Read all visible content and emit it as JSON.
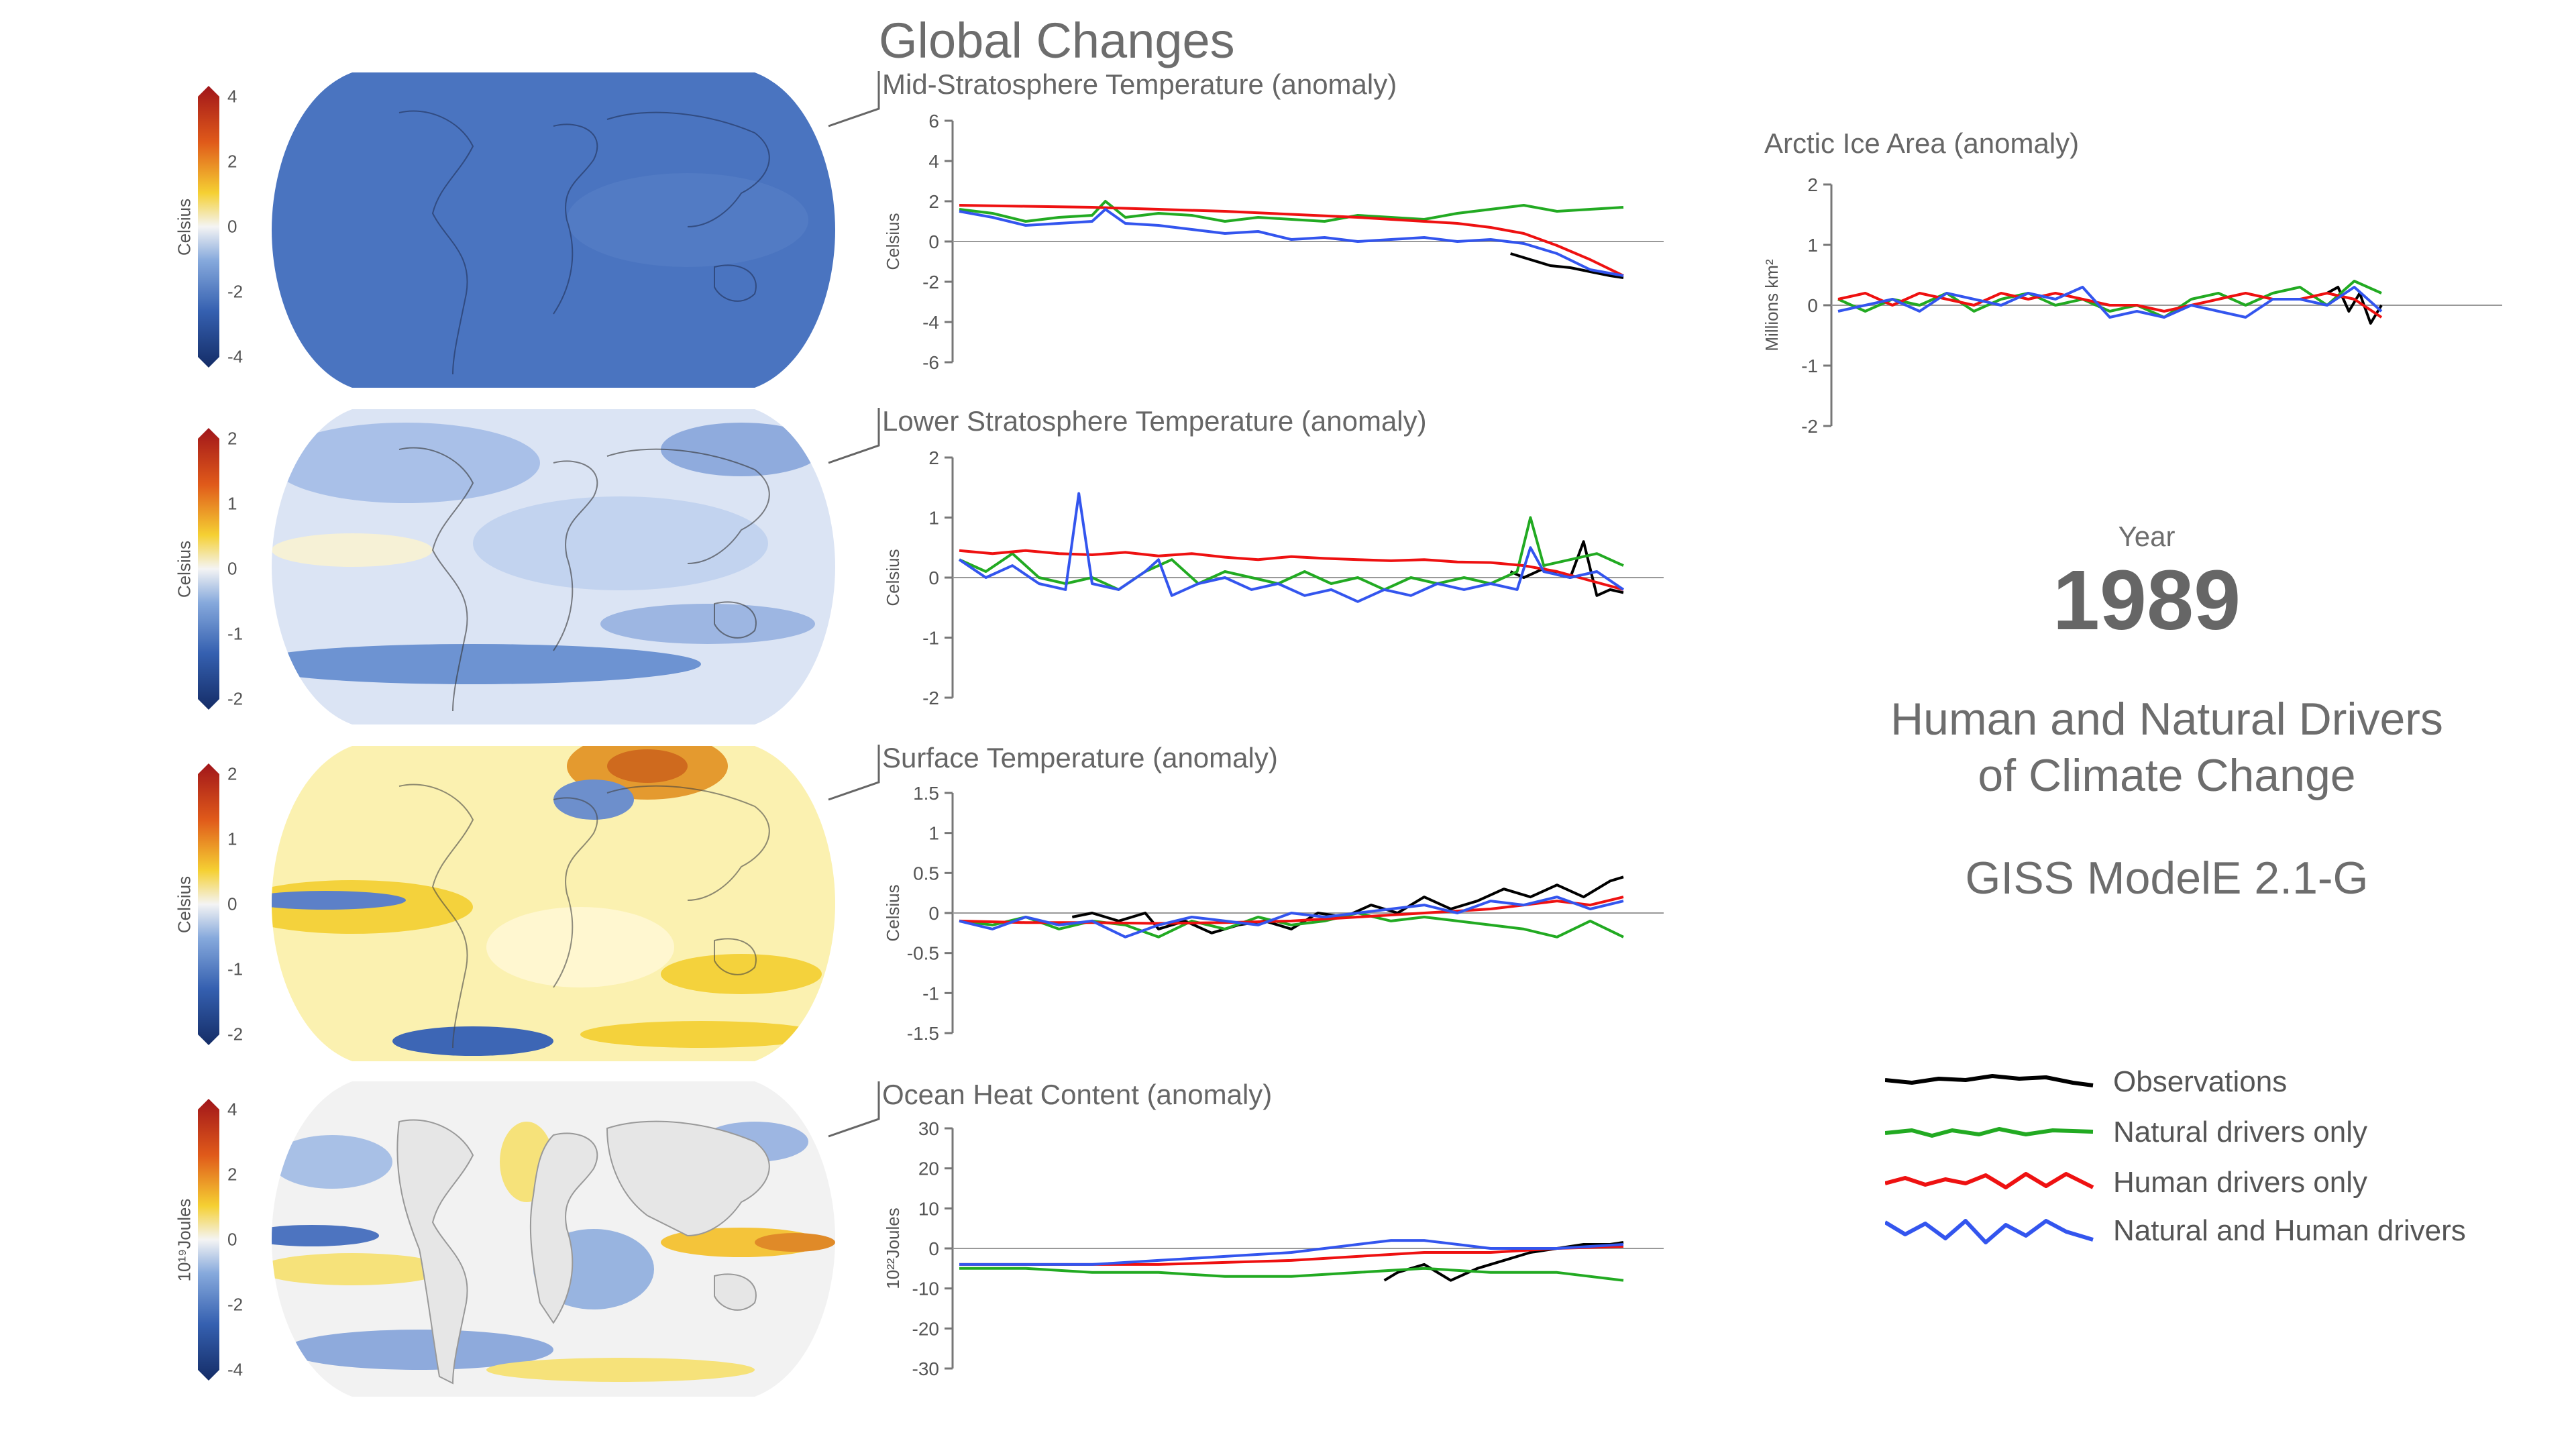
{
  "title": "Global Changes",
  "year_label": "Year",
  "year": "1989",
  "subtitle_line1": "Human and Natural Drivers",
  "subtitle_line2": "of Climate Change",
  "model": "GISS ModelE 2.1-G",
  "colors": {
    "observations": "#000000",
    "natural": "#22aa22",
    "human": "#ee1111",
    "both": "#3355ee",
    "axis": "#888888",
    "zero_line": "#999999"
  },
  "legend": [
    {
      "label": "Observations",
      "color": "#000000"
    },
    {
      "label": "Natural drivers only",
      "color": "#22aa22"
    },
    {
      "label": "Human drivers only",
      "color": "#ee1111"
    },
    {
      "label": "Natural and Human drivers",
      "color": "#3355ee"
    }
  ],
  "colorbars": [
    {
      "unit": "Celsius",
      "ticks": [
        "4",
        "2",
        "0",
        "-2",
        "-4"
      ]
    },
    {
      "unit": "Celsius",
      "ticks": [
        "2",
        "1",
        "0",
        "-1",
        "-2"
      ]
    },
    {
      "unit": "Celsius",
      "ticks": [
        "2",
        "1",
        "0",
        "-1",
        "-2"
      ]
    },
    {
      "unit": "10¹⁹Joules",
      "ticks": [
        "4",
        "2",
        "0",
        "-2",
        "-4"
      ]
    }
  ],
  "chart_data": [
    {
      "type": "line",
      "title": "Mid-Stratosphere Temperature (anomaly)",
      "ylabel": "Celsius",
      "ylim": [
        -6,
        6
      ],
      "yticks": [
        6,
        4,
        2,
        0,
        -2,
        -4,
        -6
      ],
      "series": [
        {
          "name": "Observations",
          "color": "#000000",
          "x": [
            0.83,
            0.86,
            0.89,
            0.92,
            0.95,
            0.98,
            1.0
          ],
          "y": [
            -0.6,
            -0.9,
            -1.2,
            -1.3,
            -1.5,
            -1.7,
            -1.8
          ]
        },
        {
          "name": "Natural drivers only",
          "color": "#22aa22",
          "x": [
            0.0,
            0.05,
            0.1,
            0.15,
            0.2,
            0.22,
            0.25,
            0.3,
            0.35,
            0.4,
            0.45,
            0.5,
            0.55,
            0.6,
            0.65,
            0.7,
            0.75,
            0.8,
            0.85,
            0.9,
            0.95,
            1.0
          ],
          "y": [
            1.6,
            1.4,
            1.0,
            1.2,
            1.3,
            2.0,
            1.2,
            1.4,
            1.3,
            1.0,
            1.2,
            1.1,
            1.0,
            1.3,
            1.2,
            1.1,
            1.4,
            1.6,
            1.8,
            1.5,
            1.6,
            1.7
          ]
        },
        {
          "name": "Human drivers only",
          "color": "#ee1111",
          "x": [
            0.0,
            0.1,
            0.2,
            0.3,
            0.4,
            0.5,
            0.6,
            0.65,
            0.7,
            0.75,
            0.8,
            0.85,
            0.9,
            0.95,
            1.0
          ],
          "y": [
            1.8,
            1.75,
            1.7,
            1.6,
            1.5,
            1.35,
            1.2,
            1.1,
            1.0,
            0.9,
            0.7,
            0.4,
            -0.2,
            -0.9,
            -1.7
          ]
        },
        {
          "name": "Natural and Human drivers",
          "color": "#3355ee",
          "x": [
            0.0,
            0.05,
            0.1,
            0.15,
            0.2,
            0.22,
            0.25,
            0.3,
            0.35,
            0.4,
            0.45,
            0.5,
            0.55,
            0.6,
            0.65,
            0.7,
            0.75,
            0.8,
            0.85,
            0.9,
            0.95,
            1.0
          ],
          "y": [
            1.5,
            1.2,
            0.8,
            0.9,
            1.0,
            1.6,
            0.9,
            0.8,
            0.6,
            0.4,
            0.5,
            0.1,
            0.2,
            0.0,
            0.1,
            0.2,
            0.0,
            0.1,
            -0.1,
            -0.6,
            -1.4,
            -1.7
          ]
        }
      ]
    },
    {
      "type": "line",
      "title": "Lower Stratosphere Temperature (anomaly)",
      "ylabel": "Celsius",
      "ylim": [
        -2,
        2
      ],
      "yticks": [
        2,
        1,
        0,
        -1,
        -2
      ],
      "series": [
        {
          "name": "Observations",
          "color": "#000000",
          "x": [
            0.83,
            0.85,
            0.88,
            0.9,
            0.92,
            0.94,
            0.96,
            0.98,
            1.0
          ],
          "y": [
            0.1,
            0.0,
            0.15,
            0.05,
            0.0,
            0.6,
            -0.3,
            -0.2,
            -0.25
          ]
        },
        {
          "name": "Natural drivers only",
          "color": "#22aa22",
          "x": [
            0.0,
            0.04,
            0.08,
            0.12,
            0.16,
            0.2,
            0.24,
            0.28,
            0.32,
            0.36,
            0.4,
            0.44,
            0.48,
            0.52,
            0.56,
            0.6,
            0.64,
            0.68,
            0.72,
            0.76,
            0.8,
            0.84,
            0.86,
            0.88,
            0.92,
            0.96,
            1.0
          ],
          "y": [
            0.3,
            0.1,
            0.4,
            0.0,
            -0.1,
            0.0,
            -0.2,
            0.1,
            0.3,
            -0.1,
            0.1,
            0.0,
            -0.1,
            0.1,
            -0.1,
            0.0,
            -0.2,
            0.0,
            -0.1,
            0.0,
            -0.1,
            0.1,
            1.0,
            0.2,
            0.3,
            0.4,
            0.2
          ]
        },
        {
          "name": "Human drivers only",
          "color": "#ee1111",
          "x": [
            0.0,
            0.05,
            0.1,
            0.15,
            0.2,
            0.25,
            0.3,
            0.35,
            0.4,
            0.45,
            0.5,
            0.55,
            0.6,
            0.65,
            0.7,
            0.75,
            0.8,
            0.85,
            0.9,
            0.95,
            1.0
          ],
          "y": [
            0.45,
            0.4,
            0.45,
            0.4,
            0.38,
            0.42,
            0.36,
            0.4,
            0.34,
            0.3,
            0.35,
            0.32,
            0.3,
            0.28,
            0.3,
            0.26,
            0.25,
            0.2,
            0.1,
            -0.05,
            -0.2
          ]
        },
        {
          "name": "Natural and Human drivers",
          "color": "#3355ee",
          "x": [
            0.0,
            0.04,
            0.08,
            0.12,
            0.16,
            0.18,
            0.2,
            0.24,
            0.28,
            0.3,
            0.32,
            0.36,
            0.4,
            0.44,
            0.48,
            0.52,
            0.56,
            0.6,
            0.64,
            0.68,
            0.72,
            0.76,
            0.8,
            0.84,
            0.86,
            0.88,
            0.92,
            0.96,
            1.0
          ],
          "y": [
            0.3,
            0.0,
            0.2,
            -0.1,
            -0.2,
            1.4,
            -0.1,
            -0.2,
            0.1,
            0.3,
            -0.3,
            -0.1,
            0.0,
            -0.2,
            -0.1,
            -0.3,
            -0.2,
            -0.4,
            -0.2,
            -0.3,
            -0.1,
            -0.2,
            -0.1,
            -0.2,
            0.5,
            0.1,
            0.0,
            0.1,
            -0.2
          ]
        }
      ]
    },
    {
      "type": "line",
      "title": "Surface Temperature (anomaly)",
      "ylabel": "Celsius",
      "ylim": [
        -1.5,
        1.5
      ],
      "yticks": [
        1.5,
        1,
        0.5,
        0,
        -0.5,
        -1,
        -1.5
      ],
      "series": [
        {
          "name": "Observations",
          "color": "#000000",
          "x": [
            0.17,
            0.2,
            0.24,
            0.28,
            0.3,
            0.34,
            0.38,
            0.42,
            0.46,
            0.5,
            0.54,
            0.58,
            0.62,
            0.66,
            0.7,
            0.74,
            0.78,
            0.82,
            0.86,
            0.9,
            0.94,
            0.98,
            1.0
          ],
          "y": [
            -0.05,
            0.0,
            -0.1,
            0.0,
            -0.2,
            -0.1,
            -0.25,
            -0.15,
            -0.1,
            -0.2,
            0.0,
            -0.05,
            0.1,
            0.0,
            0.2,
            0.05,
            0.15,
            0.3,
            0.2,
            0.35,
            0.2,
            0.4,
            0.45
          ]
        },
        {
          "name": "Natural drivers only",
          "color": "#22aa22",
          "x": [
            0.0,
            0.05,
            0.1,
            0.15,
            0.2,
            0.25,
            0.3,
            0.35,
            0.4,
            0.45,
            0.5,
            0.55,
            0.6,
            0.65,
            0.7,
            0.75,
            0.8,
            0.85,
            0.9,
            0.95,
            1.0
          ],
          "y": [
            -0.1,
            -0.15,
            -0.05,
            -0.2,
            -0.1,
            -0.15,
            -0.3,
            -0.1,
            -0.2,
            -0.05,
            -0.15,
            -0.1,
            0.0,
            -0.1,
            -0.05,
            -0.1,
            -0.15,
            -0.2,
            -0.3,
            -0.1,
            -0.3
          ]
        },
        {
          "name": "Human drivers only",
          "color": "#ee1111",
          "x": [
            0.0,
            0.1,
            0.2,
            0.3,
            0.4,
            0.5,
            0.6,
            0.7,
            0.8,
            0.85,
            0.9,
            0.95,
            1.0
          ],
          "y": [
            -0.1,
            -0.12,
            -0.12,
            -0.13,
            -0.12,
            -0.1,
            -0.05,
            0.0,
            0.05,
            0.1,
            0.15,
            0.1,
            0.2
          ]
        },
        {
          "name": "Natural and Human drivers",
          "color": "#3355ee",
          "x": [
            0.0,
            0.05,
            0.1,
            0.15,
            0.2,
            0.25,
            0.3,
            0.35,
            0.4,
            0.45,
            0.5,
            0.55,
            0.6,
            0.65,
            0.7,
            0.75,
            0.8,
            0.85,
            0.9,
            0.95,
            1.0
          ],
          "y": [
            -0.1,
            -0.2,
            -0.05,
            -0.15,
            -0.1,
            -0.3,
            -0.15,
            -0.05,
            -0.1,
            -0.15,
            0.0,
            -0.05,
            0.0,
            0.05,
            0.1,
            0.0,
            0.15,
            0.1,
            0.2,
            0.05,
            0.15
          ]
        }
      ]
    },
    {
      "type": "line",
      "title": "Ocean Heat Content (anomaly)",
      "ylabel": "10²²Joules",
      "ylim": [
        -30,
        30
      ],
      "yticks": [
        30,
        20,
        10,
        0,
        -10,
        -20,
        -30
      ],
      "series": [
        {
          "name": "Observations",
          "color": "#000000",
          "x": [
            0.64,
            0.66,
            0.68,
            0.7,
            0.74,
            0.78,
            0.82,
            0.86,
            0.9,
            0.94,
            0.98,
            1.0
          ],
          "y": [
            -8,
            -6,
            -5,
            -4,
            -8,
            -5,
            -3,
            -1,
            0,
            1,
            1,
            1.5
          ]
        },
        {
          "name": "Natural drivers only",
          "color": "#22aa22",
          "x": [
            0.0,
            0.1,
            0.2,
            0.3,
            0.4,
            0.5,
            0.6,
            0.7,
            0.8,
            0.9,
            1.0
          ],
          "y": [
            -5,
            -5,
            -6,
            -6,
            -7,
            -7,
            -6,
            -5,
            -6,
            -6,
            -8
          ]
        },
        {
          "name": "Human drivers only",
          "color": "#ee1111",
          "x": [
            0.0,
            0.1,
            0.2,
            0.3,
            0.4,
            0.5,
            0.6,
            0.7,
            0.8,
            0.9,
            1.0
          ],
          "y": [
            -4,
            -4,
            -4,
            -4,
            -3.5,
            -3,
            -2,
            -1,
            -1,
            0,
            0.5
          ]
        },
        {
          "name": "Natural and Human drivers",
          "color": "#3355ee",
          "x": [
            0.0,
            0.1,
            0.2,
            0.3,
            0.4,
            0.5,
            0.6,
            0.65,
            0.7,
            0.75,
            0.8,
            0.9,
            1.0
          ],
          "y": [
            -4,
            -4,
            -4,
            -3,
            -2,
            -1,
            1,
            2,
            2,
            1,
            0,
            0,
            1
          ]
        }
      ]
    },
    {
      "type": "line",
      "title": "Arctic Ice Area (anomaly)",
      "ylabel": "Millions km²",
      "ylim": [
        -2,
        2
      ],
      "yticks": [
        2,
        1,
        0,
        -1,
        -2
      ],
      "series": [
        {
          "name": "Observations",
          "color": "#000000",
          "x": [
            0.9,
            0.92,
            0.94,
            0.96,
            0.98,
            1.0
          ],
          "y": [
            0.2,
            0.3,
            -0.1,
            0.2,
            -0.3,
            0.0
          ]
        },
        {
          "name": "Natural drivers only",
          "color": "#22aa22",
          "x": [
            0.0,
            0.05,
            0.1,
            0.15,
            0.2,
            0.25,
            0.3,
            0.35,
            0.4,
            0.45,
            0.5,
            0.55,
            0.6,
            0.65,
            0.7,
            0.75,
            0.8,
            0.85,
            0.9,
            0.95,
            1.0
          ],
          "y": [
            0.1,
            -0.1,
            0.1,
            0.0,
            0.2,
            -0.1,
            0.1,
            0.2,
            0.0,
            0.1,
            -0.1,
            0.0,
            -0.2,
            0.1,
            0.2,
            0.0,
            0.2,
            0.3,
            0.0,
            0.4,
            0.2
          ]
        },
        {
          "name": "Human drivers only",
          "color": "#ee1111",
          "x": [
            0.0,
            0.05,
            0.1,
            0.15,
            0.2,
            0.25,
            0.3,
            0.35,
            0.4,
            0.45,
            0.5,
            0.55,
            0.6,
            0.65,
            0.7,
            0.75,
            0.8,
            0.85,
            0.9,
            0.95,
            1.0
          ],
          "y": [
            0.1,
            0.2,
            0.0,
            0.2,
            0.1,
            0.0,
            0.2,
            0.1,
            0.2,
            0.1,
            0.0,
            0.0,
            -0.1,
            0.0,
            0.1,
            0.2,
            0.1,
            0.1,
            0.2,
            0.1,
            -0.2
          ]
        },
        {
          "name": "Natural and Human drivers",
          "color": "#3355ee",
          "x": [
            0.0,
            0.05,
            0.1,
            0.15,
            0.2,
            0.25,
            0.3,
            0.35,
            0.4,
            0.45,
            0.5,
            0.55,
            0.6,
            0.65,
            0.7,
            0.75,
            0.8,
            0.85,
            0.9,
            0.95,
            1.0
          ],
          "y": [
            -0.1,
            0.0,
            0.1,
            -0.1,
            0.2,
            0.1,
            0.0,
            0.2,
            0.1,
            0.3,
            -0.2,
            -0.1,
            -0.2,
            0.0,
            -0.1,
            -0.2,
            0.1,
            0.1,
            0.0,
            0.3,
            -0.1
          ]
        }
      ]
    }
  ]
}
